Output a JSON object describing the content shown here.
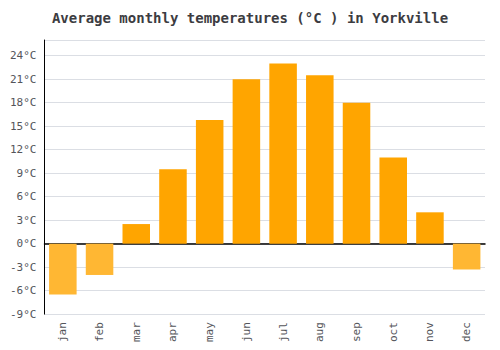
{
  "chart_data": {
    "type": "bar",
    "title": "Average monthly temperatures (°C ) in Yorkville",
    "categories": [
      "jan",
      "feb",
      "mar",
      "apr",
      "may",
      "jun",
      "jul",
      "aug",
      "sep",
      "oct",
      "nov",
      "dec"
    ],
    "values": [
      -6.5,
      -4.0,
      2.5,
      9.5,
      15.8,
      21.0,
      23.0,
      21.5,
      18.0,
      11.0,
      4.0,
      -3.3
    ],
    "colors": [
      "#FFB733",
      "#FFB733",
      "#FFA500",
      "#FFA500",
      "#FFA500",
      "#FFA500",
      "#FFA500",
      "#FFA500",
      "#FFA500",
      "#FFA500",
      "#FFA500",
      "#FFB733"
    ],
    "ylim": [
      -9,
      26
    ],
    "yticks": [
      {
        "value": -9,
        "label": "-9°C"
      },
      {
        "value": -6,
        "label": "-6°C"
      },
      {
        "value": -3,
        "label": "-3°C"
      },
      {
        "value": 0,
        "label": "0°C"
      },
      {
        "value": 3,
        "label": "3°C"
      },
      {
        "value": 6,
        "label": "6°C"
      },
      {
        "value": 9,
        "label": "9°C"
      },
      {
        "value": 12,
        "label": "12°C"
      },
      {
        "value": 15,
        "label": "15°C"
      },
      {
        "value": 18,
        "label": "18°C"
      },
      {
        "value": 21,
        "label": "21°C"
      },
      {
        "value": 24,
        "label": "24°C"
      }
    ],
    "grid": true
  }
}
